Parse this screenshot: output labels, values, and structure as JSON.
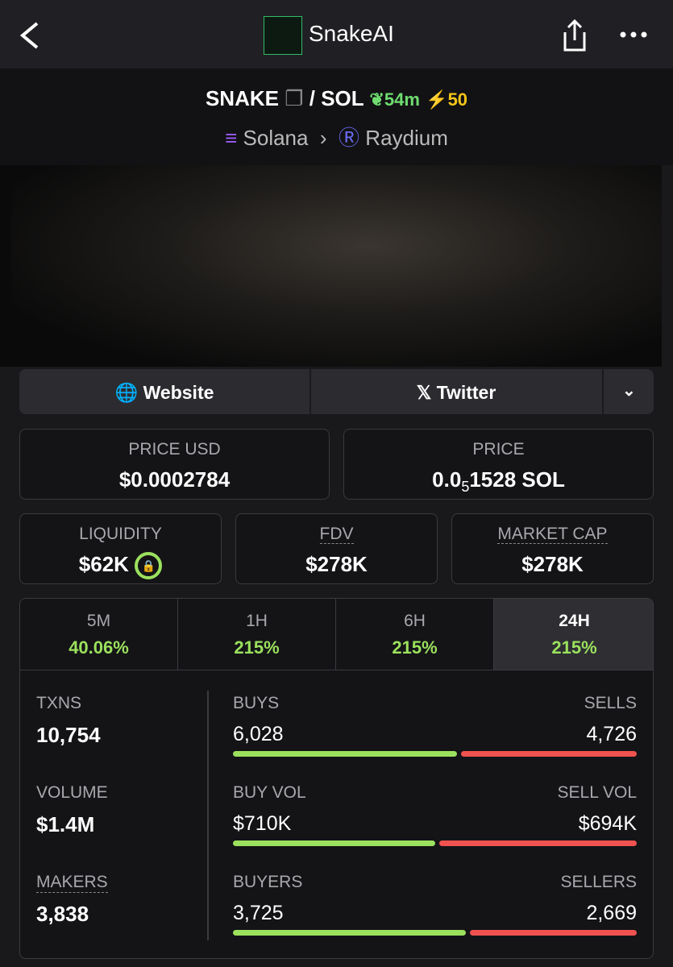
{
  "nav": {
    "title": "SnakeAI"
  },
  "pair": {
    "base": "SNAKE",
    "separator": "/",
    "quote": "SOL",
    "age": "54m",
    "boosts": "50",
    "chain": "Solana",
    "dex": "Raydium"
  },
  "links": {
    "website": "Website",
    "twitter": "Twitter"
  },
  "price_usd": {
    "label": "PRICE USD",
    "value": "$0.0002784"
  },
  "price": {
    "label": "PRICE",
    "value_prefix": "0.0",
    "zeros": "5",
    "value_suffix": "1528 SOL"
  },
  "stats": [
    {
      "label": "LIQUIDITY",
      "value": "$62K"
    },
    {
      "label": "FDV",
      "value": "$278K"
    },
    {
      "label": "MARKET CAP",
      "value": "$278K"
    }
  ],
  "timeframes": [
    {
      "label": "5M",
      "change": "40.06%"
    },
    {
      "label": "1H",
      "change": "215%"
    },
    {
      "label": "6H",
      "change": "215%"
    },
    {
      "label": "24H",
      "change": "215%"
    }
  ],
  "totals": [
    {
      "label": "TXNS",
      "value": "10,754"
    },
    {
      "label": "VOLUME",
      "value": "$1.4M"
    },
    {
      "label": "MAKERS",
      "value": "3,838"
    }
  ],
  "splits": [
    {
      "left_label": "BUYS",
      "left": {
        "value": 6028,
        "label": "6,028"
      },
      "right_label": "SELLS",
      "right": {
        "value": 4726,
        "label": "4,726"
      }
    },
    {
      "left_label": "BUY VOL",
      "left": {
        "value": 710000,
        "label": "$710K"
      },
      "right_label": "SELL VOL",
      "right": {
        "value": 694000,
        "label": "$694K"
      }
    },
    {
      "left_label": "BUYERS",
      "left": {
        "value": 3725,
        "label": "3,725"
      },
      "right_label": "SELLERS",
      "right": {
        "value": 2669,
        "label": "2,669"
      }
    }
  ]
}
